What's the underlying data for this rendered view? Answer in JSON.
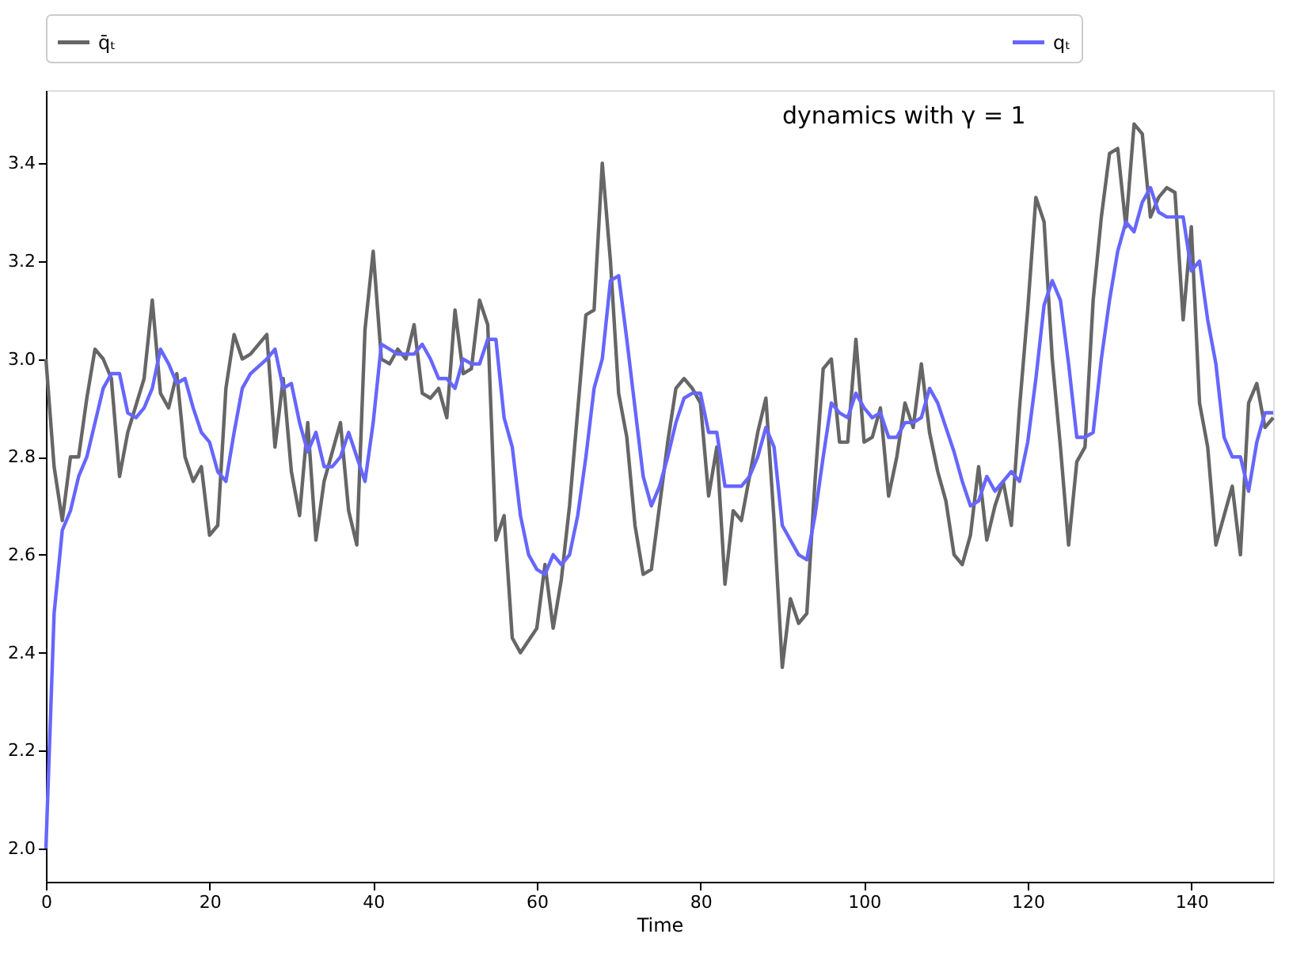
{
  "chart_data": {
    "type": "line",
    "xlabel": "Time",
    "annotations": [
      "dynamics with γ = 1"
    ],
    "xlim": [
      0,
      150
    ],
    "ylim": [
      1.932,
      3.549
    ],
    "xticks": [
      0,
      20,
      40,
      60,
      80,
      100,
      120,
      140
    ],
    "yticks": [
      {
        "value": 2.0,
        "label": "2.0"
      },
      2.2,
      2.4,
      2.6,
      2.8,
      {
        "value": 3.0,
        "label": "3.0"
      },
      3.2,
      3.4
    ],
    "grid": false,
    "legend": "top",
    "marker": "none",
    "line_style": "solid",
    "series": [
      {
        "name": "q̄ₜ",
        "color": "#666666",
        "x": [
          0,
          1,
          2,
          3,
          4,
          5,
          6,
          7,
          8,
          9,
          10,
          12,
          13,
          14,
          15,
          16,
          17,
          18,
          19,
          20,
          21,
          22,
          23,
          24,
          25,
          27,
          28,
          29,
          30,
          31,
          32,
          33,
          34,
          36,
          37,
          38,
          39,
          40,
          41,
          42,
          43,
          44,
          45,
          46,
          47,
          48,
          49,
          50,
          51,
          52,
          53,
          54,
          55,
          56,
          57,
          58,
          60,
          61,
          62,
          63,
          64,
          66,
          67,
          68,
          69,
          70,
          71,
          72,
          73,
          74,
          76,
          77,
          78,
          79,
          80,
          81,
          82,
          83,
          84,
          85,
          87,
          88,
          89,
          90,
          91,
          92,
          93,
          94,
          95,
          96,
          97,
          98,
          99,
          100,
          101,
          102,
          103,
          104,
          105,
          106,
          107,
          108,
          109,
          110,
          111,
          112,
          113,
          114,
          115,
          116,
          117,
          118,
          119,
          120,
          121,
          122,
          123,
          124,
          125,
          126,
          127,
          128,
          129,
          130,
          131,
          132,
          133,
          134,
          135,
          136,
          137,
          138,
          139,
          140,
          141,
          142,
          143,
          144,
          145,
          146,
          147,
          148,
          149,
          150
        ],
        "values": [
          3.0,
          2.78,
          2.67,
          2.8,
          2.8,
          2.92,
          3.02,
          3.0,
          2.96,
          2.76,
          2.85,
          2.96,
          3.12,
          2.93,
          2.9,
          2.97,
          2.8,
          2.75,
          2.78,
          2.64,
          2.66,
          2.94,
          3.05,
          3.0,
          3.01,
          3.05,
          2.82,
          2.96,
          2.77,
          2.68,
          2.87,
          2.63,
          2.75,
          2.87,
          2.69,
          2.62,
          3.06,
          3.22,
          3.0,
          2.99,
          3.02,
          3.0,
          3.07,
          2.93,
          2.92,
          2.94,
          2.88,
          3.1,
          2.97,
          2.98,
          3.12,
          3.07,
          2.63,
          2.68,
          2.43,
          2.4,
          2.45,
          2.58,
          2.45,
          2.55,
          2.7,
          3.09,
          3.1,
          3.4,
          3.2,
          2.93,
          2.84,
          2.66,
          2.56,
          2.57,
          2.83,
          2.94,
          2.96,
          2.94,
          2.91,
          2.72,
          2.82,
          2.54,
          2.69,
          2.67,
          2.85,
          2.92,
          2.67,
          2.37,
          2.51,
          2.46,
          2.48,
          2.75,
          2.98,
          3.0,
          2.83,
          2.83,
          3.04,
          2.83,
          2.84,
          2.9,
          2.72,
          2.8,
          2.91,
          2.86,
          2.99,
          2.85,
          2.77,
          2.71,
          2.6,
          2.58,
          2.64,
          2.78,
          2.63,
          2.7,
          2.75,
          2.66,
          2.9,
          3.1,
          3.33,
          3.28,
          3.0,
          2.82,
          2.62,
          2.79,
          2.82,
          3.12,
          3.29,
          3.42,
          3.43,
          3.27,
          3.48,
          3.46,
          3.29,
          3.33,
          3.35,
          3.34,
          3.08,
          3.27,
          2.91,
          2.82,
          2.62,
          2.68,
          2.74,
          2.6,
          2.91,
          2.95,
          2.86,
          2.88
        ]
      },
      {
        "name": "qₜ",
        "color": "#6666ff",
        "x": [
          0,
          1,
          2,
          3,
          4,
          5,
          6,
          7,
          8,
          9,
          10,
          11,
          12,
          13,
          14,
          15,
          16,
          17,
          18,
          19,
          20,
          21,
          22,
          23,
          24,
          25,
          27,
          28,
          29,
          30,
          31,
          32,
          33,
          34,
          35,
          36,
          37,
          38,
          39,
          40,
          41,
          42,
          43,
          45,
          46,
          47,
          48,
          49,
          50,
          51,
          52,
          53,
          54,
          55,
          56,
          57,
          58,
          59,
          60,
          61,
          62,
          63,
          64,
          65,
          66,
          67,
          68,
          69,
          70,
          71,
          72,
          73,
          74,
          75,
          76,
          77,
          78,
          79,
          80,
          81,
          82,
          83,
          84,
          85,
          86,
          87,
          88,
          89,
          90,
          91,
          92,
          93,
          94,
          95,
          96,
          97,
          98,
          99,
          100,
          101,
          102,
          103,
          104,
          105,
          106,
          107,
          108,
          109,
          110,
          111,
          112,
          113,
          114,
          115,
          116,
          117,
          118,
          119,
          120,
          121,
          122,
          123,
          124,
          125,
          126,
          127,
          128,
          129,
          130,
          131,
          132,
          133,
          134,
          135,
          136,
          137,
          138,
          139,
          140,
          141,
          142,
          143,
          144,
          145,
          146,
          147,
          148,
          149,
          150
        ],
        "values": [
          2.0,
          2.48,
          2.65,
          2.69,
          2.76,
          2.8,
          2.87,
          2.94,
          2.97,
          2.97,
          2.89,
          2.88,
          2.9,
          2.94,
          3.02,
          2.99,
          2.95,
          2.96,
          2.9,
          2.85,
          2.83,
          2.77,
          2.75,
          2.85,
          2.94,
          2.97,
          3.0,
          3.02,
          2.94,
          2.95,
          2.87,
          2.81,
          2.85,
          2.78,
          2.78,
          2.8,
          2.85,
          2.8,
          2.75,
          2.87,
          3.03,
          3.02,
          3.01,
          3.01,
          3.03,
          3.0,
          2.96,
          2.96,
          2.94,
          3.0,
          2.99,
          2.99,
          3.04,
          3.04,
          2.88,
          2.82,
          2.68,
          2.6,
          2.57,
          2.56,
          2.6,
          2.58,
          2.6,
          2.68,
          2.8,
          2.94,
          3.0,
          3.16,
          3.17,
          3.04,
          2.9,
          2.76,
          2.7,
          2.74,
          2.8,
          2.87,
          2.92,
          2.93,
          2.93,
          2.85,
          2.85,
          2.74,
          2.74,
          2.74,
          2.76,
          2.8,
          2.86,
          2.82,
          2.66,
          2.63,
          2.6,
          2.59,
          2.68,
          2.8,
          2.91,
          2.89,
          2.88,
          2.93,
          2.9,
          2.88,
          2.89,
          2.84,
          2.84,
          2.87,
          2.87,
          2.88,
          2.94,
          2.91,
          2.86,
          2.81,
          2.75,
          2.7,
          2.71,
          2.76,
          2.73,
          2.75,
          2.77,
          2.75,
          2.83,
          2.96,
          3.11,
          3.16,
          3.12,
          2.99,
          2.84,
          2.84,
          2.85,
          3.0,
          3.12,
          3.22,
          3.28,
          3.26,
          3.32,
          3.35,
          3.3,
          3.29,
          3.29,
          3.29,
          3.18,
          3.2,
          3.08,
          2.99,
          2.84,
          2.8,
          2.8,
          2.73,
          2.83,
          2.89,
          2.89
        ]
      }
    ]
  }
}
